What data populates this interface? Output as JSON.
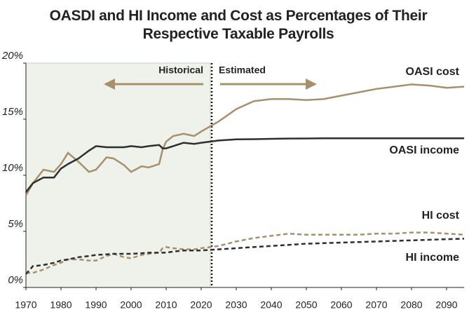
{
  "chart_data": {
    "type": "line",
    "title": "OASDI and HI Income and Cost as Percentages of Their Respective Taxable Payrolls",
    "annotations": [
      "Historical",
      "Estimated"
    ],
    "divider_x": 2023,
    "x": [
      1970,
      1972,
      1975,
      1978,
      1980,
      1982,
      1985,
      1988,
      1990,
      1993,
      1995,
      1998,
      2000,
      2003,
      2005,
      2008,
      2009,
      2010,
      2012,
      2015,
      2018,
      2020,
      2025,
      2030,
      2035,
      2040,
      2045,
      2050,
      2055,
      2060,
      2065,
      2070,
      2075,
      2080,
      2085,
      2090,
      2095
    ],
    "series": [
      {
        "name": "OASI cost",
        "color": "#a8906c",
        "dash": false,
        "values": [
          8.2,
          9.3,
          10.5,
          10.3,
          11.0,
          12.0,
          11.2,
          10.3,
          10.5,
          11.6,
          11.5,
          10.9,
          10.3,
          10.8,
          10.7,
          11.0,
          12.3,
          13.0,
          13.5,
          13.7,
          13.5,
          13.9,
          14.8,
          15.9,
          16.6,
          16.8,
          16.8,
          16.7,
          16.8,
          17.1,
          17.4,
          17.7,
          17.9,
          18.1,
          18.0,
          17.8,
          17.9
        ]
      },
      {
        "name": "OASI income",
        "color": "#2e2e2e",
        "dash": false,
        "values": [
          8.5,
          9.3,
          9.8,
          9.8,
          10.6,
          11.0,
          11.5,
          12.2,
          12.6,
          12.5,
          12.5,
          12.5,
          12.6,
          12.5,
          12.6,
          12.7,
          12.4,
          12.4,
          12.6,
          12.9,
          12.8,
          12.9,
          13.1,
          13.2,
          13.22,
          13.25,
          13.27,
          13.28,
          13.3,
          13.3,
          13.3,
          13.3,
          13.3,
          13.3,
          13.3,
          13.3,
          13.3
        ]
      },
      {
        "name": "HI cost",
        "color": "#a8906c",
        "dash": true,
        "values": [
          1.3,
          1.3,
          1.6,
          2.0,
          2.2,
          2.5,
          2.5,
          2.4,
          2.4,
          2.8,
          3.0,
          2.7,
          2.6,
          2.9,
          3.0,
          3.1,
          3.5,
          3.6,
          3.5,
          3.4,
          3.4,
          3.5,
          3.7,
          4.1,
          4.4,
          4.6,
          4.8,
          4.7,
          4.7,
          4.7,
          4.7,
          4.8,
          4.8,
          4.9,
          4.9,
          4.8,
          4.7
        ]
      },
      {
        "name": "HI income",
        "color": "#2e2e2e",
        "dash": true,
        "values": [
          1.2,
          1.9,
          2.0,
          2.2,
          2.4,
          2.5,
          2.7,
          2.8,
          2.9,
          2.95,
          3.0,
          3.0,
          3.0,
          3.05,
          3.1,
          3.1,
          3.1,
          3.1,
          3.2,
          3.3,
          3.3,
          3.3,
          3.4,
          3.5,
          3.6,
          3.7,
          3.8,
          3.9,
          3.95,
          4.0,
          4.05,
          4.1,
          4.15,
          4.2,
          4.25,
          4.3,
          4.35
        ]
      }
    ],
    "xlim": [
      1970,
      2095
    ],
    "xticks": [
      1970,
      1980,
      1990,
      2000,
      2010,
      2020,
      2030,
      2040,
      2050,
      2060,
      2070,
      2080,
      2090
    ],
    "ylim": [
      0,
      20
    ],
    "yticks": [
      {
        "value": 0,
        "label": "0%"
      },
      {
        "value": 5,
        "label": "5%"
      },
      {
        "value": 10,
        "label": "10%"
      },
      {
        "value": 15,
        "label": "15%"
      },
      {
        "value": 20,
        "label": "20%"
      }
    ],
    "grid": false
  }
}
